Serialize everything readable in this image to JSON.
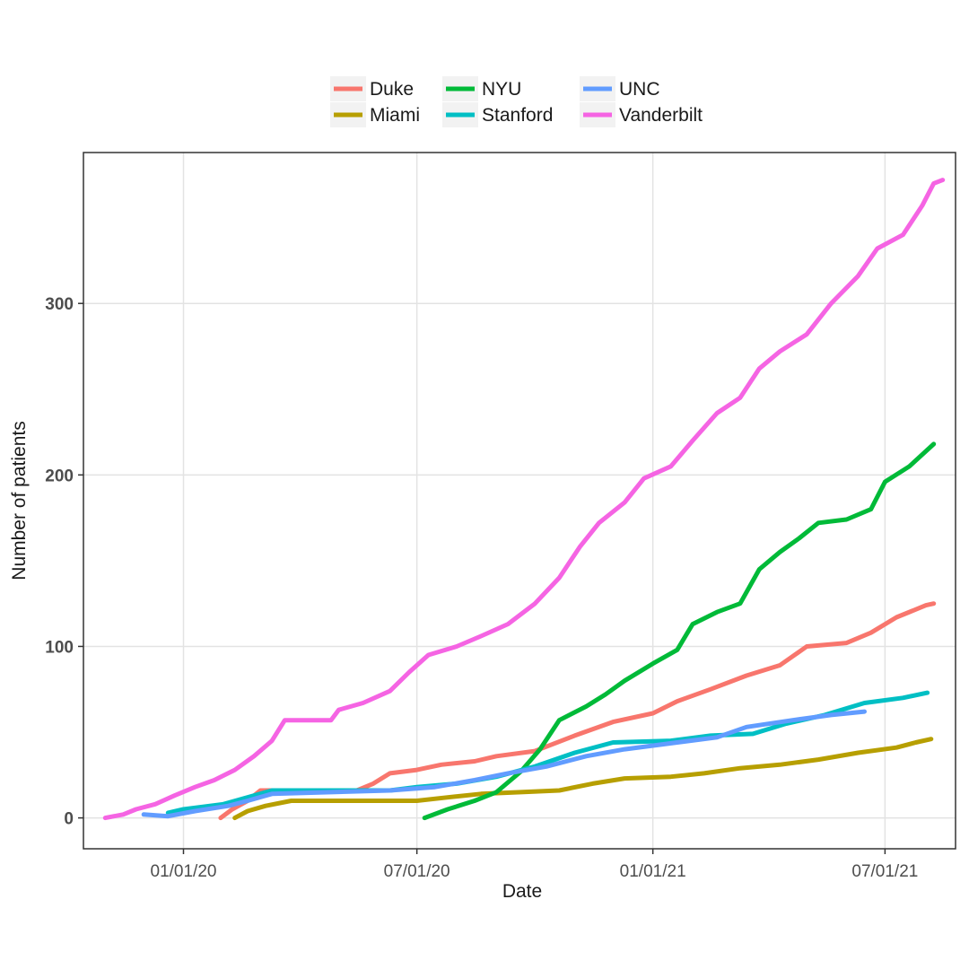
{
  "chart_data": {
    "type": "line",
    "title": "",
    "xlabel": "Date",
    "ylabel": "Number of patients",
    "x_ticks": [
      {
        "label": "01/01/20",
        "date": "2020-01-01"
      },
      {
        "label": "07/01/20",
        "date": "2020-07-01"
      },
      {
        "label": "01/01/21",
        "date": "2021-01-01"
      },
      {
        "label": "07/01/21",
        "date": "2021-07-01"
      }
    ],
    "xlim": [
      "2019-10-15",
      "2021-08-25"
    ],
    "y_ticks": [
      0,
      100,
      200,
      300
    ],
    "ylim": [
      -18,
      388
    ],
    "grid": true,
    "legend_position": "top",
    "series": [
      {
        "name": "Duke",
        "color": "#F8766D",
        "points": [
          [
            "2020-01-30",
            0
          ],
          [
            "2020-02-08",
            5
          ],
          [
            "2020-02-20",
            10
          ],
          [
            "2020-03-01",
            16
          ],
          [
            "2020-04-01",
            16
          ],
          [
            "2020-05-15",
            16
          ],
          [
            "2020-05-28",
            20
          ],
          [
            "2020-06-10",
            26
          ],
          [
            "2020-07-01",
            28
          ],
          [
            "2020-07-20",
            31
          ],
          [
            "2020-08-15",
            33
          ],
          [
            "2020-09-01",
            36
          ],
          [
            "2020-10-01",
            39
          ],
          [
            "2020-11-01",
            48
          ],
          [
            "2020-12-01",
            56
          ],
          [
            "2021-01-01",
            61
          ],
          [
            "2021-01-20",
            68
          ],
          [
            "2021-02-15",
            75
          ],
          [
            "2021-03-15",
            83
          ],
          [
            "2021-04-10",
            89
          ],
          [
            "2021-05-01",
            100
          ],
          [
            "2021-06-01",
            102
          ],
          [
            "2021-06-20",
            108
          ],
          [
            "2021-07-10",
            117
          ],
          [
            "2021-08-02",
            124
          ],
          [
            "2021-08-08",
            125
          ]
        ]
      },
      {
        "name": "Miami",
        "color": "#B79F00",
        "points": [
          [
            "2020-02-10",
            0
          ],
          [
            "2020-02-20",
            4
          ],
          [
            "2020-03-05",
            7
          ],
          [
            "2020-03-25",
            10
          ],
          [
            "2020-07-01",
            10
          ],
          [
            "2020-07-25",
            12
          ],
          [
            "2020-08-20",
            14
          ],
          [
            "2020-09-20",
            15
          ],
          [
            "2020-10-20",
            16
          ],
          [
            "2020-11-15",
            20
          ],
          [
            "2020-12-10",
            23
          ],
          [
            "2021-01-15",
            24
          ],
          [
            "2021-02-10",
            26
          ],
          [
            "2021-03-10",
            29
          ],
          [
            "2021-04-10",
            31
          ],
          [
            "2021-05-10",
            34
          ],
          [
            "2021-06-10",
            38
          ],
          [
            "2021-07-10",
            41
          ],
          [
            "2021-07-25",
            44
          ],
          [
            "2021-08-06",
            46
          ]
        ]
      },
      {
        "name": "NYU",
        "color": "#00BA38",
        "points": [
          [
            "2020-07-07",
            0
          ],
          [
            "2020-07-25",
            5
          ],
          [
            "2020-08-15",
            10
          ],
          [
            "2020-09-01",
            15
          ],
          [
            "2020-09-20",
            27
          ],
          [
            "2020-10-05",
            40
          ],
          [
            "2020-10-20",
            57
          ],
          [
            "2020-11-10",
            65
          ],
          [
            "2020-11-25",
            72
          ],
          [
            "2020-12-10",
            80
          ],
          [
            "2021-01-01",
            90
          ],
          [
            "2021-01-20",
            98
          ],
          [
            "2021-02-01",
            113
          ],
          [
            "2021-02-20",
            120
          ],
          [
            "2021-03-10",
            125
          ],
          [
            "2021-03-25",
            145
          ],
          [
            "2021-04-10",
            155
          ],
          [
            "2021-04-25",
            163
          ],
          [
            "2021-05-10",
            172
          ],
          [
            "2021-06-01",
            174
          ],
          [
            "2021-06-20",
            180
          ],
          [
            "2021-07-01",
            196
          ],
          [
            "2021-07-20",
            205
          ],
          [
            "2021-08-08",
            218
          ]
        ]
      },
      {
        "name": "Stanford",
        "color": "#00BFC4",
        "points": [
          [
            "2019-12-20",
            3
          ],
          [
            "2020-01-01",
            5
          ],
          [
            "2020-02-01",
            8
          ],
          [
            "2020-02-20",
            12
          ],
          [
            "2020-03-10",
            16
          ],
          [
            "2020-06-10",
            16
          ],
          [
            "2020-07-01",
            18
          ],
          [
            "2020-08-01",
            20
          ],
          [
            "2020-09-01",
            24
          ],
          [
            "2020-10-01",
            30
          ],
          [
            "2020-11-01",
            38
          ],
          [
            "2020-12-01",
            44
          ],
          [
            "2021-01-15",
            45
          ],
          [
            "2021-02-15",
            48
          ],
          [
            "2021-03-20",
            49
          ],
          [
            "2021-04-15",
            55
          ],
          [
            "2021-05-15",
            60
          ],
          [
            "2021-06-15",
            67
          ],
          [
            "2021-07-15",
            70
          ],
          [
            "2021-08-03",
            73
          ]
        ]
      },
      {
        "name": "UNC",
        "color": "#619CFF",
        "points": [
          [
            "2019-12-01",
            2
          ],
          [
            "2019-12-20",
            1
          ],
          [
            "2020-01-10",
            4
          ],
          [
            "2020-02-05",
            7
          ],
          [
            "2020-02-20",
            10
          ],
          [
            "2020-03-10",
            14
          ],
          [
            "2020-06-10",
            16
          ],
          [
            "2020-07-15",
            18
          ],
          [
            "2020-08-15",
            22
          ],
          [
            "2020-09-10",
            26
          ],
          [
            "2020-10-10",
            30
          ],
          [
            "2020-11-10",
            36
          ],
          [
            "2020-12-10",
            40
          ],
          [
            "2021-01-20",
            44
          ],
          [
            "2021-02-20",
            47
          ],
          [
            "2021-03-15",
            53
          ],
          [
            "2021-04-20",
            57
          ],
          [
            "2021-05-20",
            60
          ],
          [
            "2021-06-15",
            62
          ]
        ]
      },
      {
        "name": "Vanderbilt",
        "color": "#F564E3",
        "points": [
          [
            "2019-11-01",
            0
          ],
          [
            "2019-11-15",
            2
          ],
          [
            "2019-11-25",
            5
          ],
          [
            "2019-12-10",
            8
          ],
          [
            "2019-12-25",
            13
          ],
          [
            "2020-01-10",
            18
          ],
          [
            "2020-01-25",
            22
          ],
          [
            "2020-02-10",
            28
          ],
          [
            "2020-02-25",
            36
          ],
          [
            "2020-03-10",
            45
          ],
          [
            "2020-03-20",
            57
          ],
          [
            "2020-04-10",
            57
          ],
          [
            "2020-04-25",
            57
          ],
          [
            "2020-05-01",
            63
          ],
          [
            "2020-05-20",
            67
          ],
          [
            "2020-06-10",
            74
          ],
          [
            "2020-06-25",
            85
          ],
          [
            "2020-07-10",
            95
          ],
          [
            "2020-08-01",
            100
          ],
          [
            "2020-08-20",
            106
          ],
          [
            "2020-09-10",
            113
          ],
          [
            "2020-10-01",
            125
          ],
          [
            "2020-10-20",
            140
          ],
          [
            "2020-11-05",
            158
          ],
          [
            "2020-11-20",
            172
          ],
          [
            "2020-12-10",
            184
          ],
          [
            "2020-12-25",
            198
          ],
          [
            "2021-01-15",
            205
          ],
          [
            "2021-02-01",
            220
          ],
          [
            "2021-02-20",
            236
          ],
          [
            "2021-03-10",
            245
          ],
          [
            "2021-03-25",
            262
          ],
          [
            "2021-04-10",
            272
          ],
          [
            "2021-05-01",
            282
          ],
          [
            "2021-05-20",
            300
          ],
          [
            "2021-06-10",
            316
          ],
          [
            "2021-06-25",
            332
          ],
          [
            "2021-07-15",
            340
          ],
          [
            "2021-07-30",
            357
          ],
          [
            "2021-08-08",
            370
          ],
          [
            "2021-08-15",
            372
          ]
        ]
      }
    ]
  }
}
